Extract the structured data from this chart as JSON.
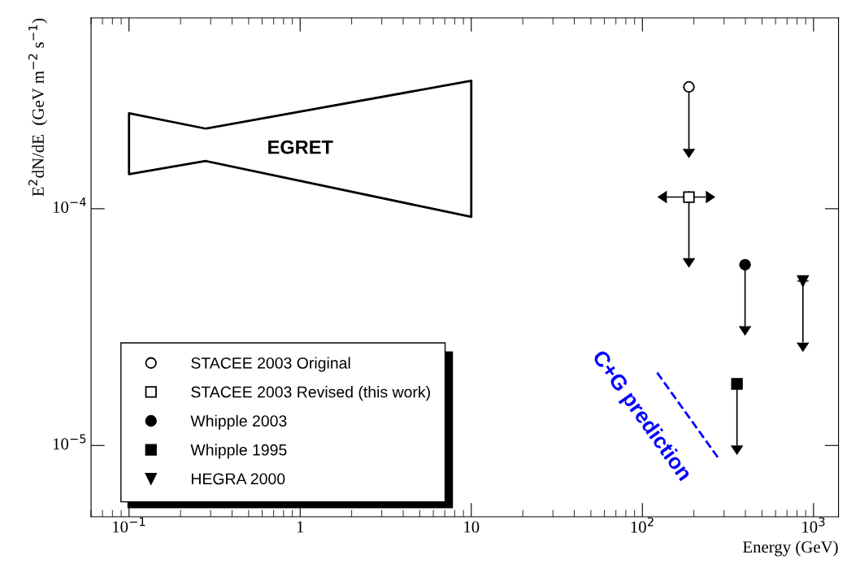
{
  "chart_data": {
    "type": "scatter",
    "xlabel": "Energy (GeV)",
    "ylabel": "E$^{2}$dN/dE  (GeV m$^{−2}$ s$^{−1}$)",
    "log": "xy",
    "xlim": [
      0.06,
      1400
    ],
    "ylim": [
      5e-06,
      0.00064
    ],
    "xticks": [
      {
        "value": 0.1,
        "label": "10$^{−1}$"
      },
      1,
      10,
      {
        "value": 100,
        "label": "10$^{2}$"
      },
      {
        "value": 1000,
        "label": "10$^{3}$"
      }
    ],
    "yticks": [
      {
        "value": 1e-05,
        "label": "10$^{−5}$"
      },
      {
        "value": 0.0001,
        "label": "10$^{−4}$"
      }
    ],
    "grid": false,
    "legend": "bottom left",
    "series": [
      {
        "type": "line",
        "name": "EGRET",
        "color": "#000000",
        "x": [
          0.1,
          0.28,
          10
        ],
        "values": [
          null,
          null,
          null
        ],
        "lower": [
          0.00014,
          0.000159,
          9.24e-05
        ],
        "upper": [
          0.000253,
          0.000218,
          0.000347
        ]
      },
      {
        "type": "line",
        "name": "C+G prediction",
        "color": "#0000ff",
        "line_style": "dashed",
        "x": [
          122,
          283
        ],
        "values": [
          2.03e-05,
          8.68e-06
        ]
      },
      {
        "name": "STACEE 2003 Original",
        "marker": "circle",
        "color": "#ffffff",
        "x": [
          187
        ],
        "values": [
          0.000327
        ],
        "errors": [
          [
            0.000179,
            0.000327
          ]
        ]
      },
      {
        "name": "STACEE 2003 Revised (this work)",
        "marker": "square",
        "color": "#ffffff",
        "x": [
          187
        ],
        "values": [
          0.000112
        ],
        "errors": [
          [
            6.18e-05,
            0.000112
          ]
        ],
        "xerrors": [
          [
            139,
            235
          ]
        ]
      },
      {
        "name": "Whipple 2003",
        "marker": "circle",
        "color": "#000000",
        "x": [
          398
        ],
        "values": [
          5.8e-05
        ],
        "errors": [
          [
            3.19e-05,
            5.8e-05
          ]
        ]
      },
      {
        "name": "Whipple 1995",
        "marker": "square",
        "color": "#000000",
        "x": [
          357
        ],
        "values": [
          1.82e-05
        ],
        "errors": [
          [
            1e-05,
            1.82e-05
          ]
        ]
      },
      {
        "name": "HEGRA 2000",
        "marker": "triangle",
        "color": "#000000",
        "x": [
          867
        ],
        "values": [
          4.95e-05
        ],
        "errors": [
          [
            2.72e-05,
            4.95e-05
          ]
        ]
      }
    ]
  }
}
